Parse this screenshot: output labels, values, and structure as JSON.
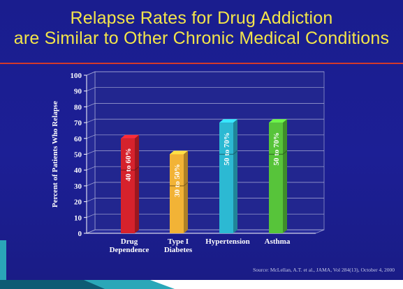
{
  "title": {
    "line1": "Relapse Rates for Drug Addiction",
    "line2": "are Similar to Other Chronic Medical Conditions"
  },
  "source": "Source: McLellan, A.T. et al., JAMA, Vol 284(13), October 4, 2000",
  "colors": {
    "title": "#f3e54a",
    "background": "#1c1f95",
    "rule": "#d43a2a"
  },
  "chart_data": {
    "type": "bar",
    "ylabel": "Percent of Patients Who Relapse",
    "ylim": [
      0,
      100
    ],
    "yticks": [
      0,
      10,
      20,
      30,
      40,
      50,
      60,
      70,
      80,
      90,
      100
    ],
    "grid": true,
    "categories": [
      {
        "lines": [
          "Drug",
          "Dependence"
        ]
      },
      {
        "lines": [
          "Type I",
          "Diabetes"
        ]
      },
      {
        "lines": [
          "Hypertension"
        ]
      },
      {
        "lines": [
          "Asthma"
        ]
      }
    ],
    "series": [
      {
        "low": 40,
        "high": 60,
        "label": "40 to 60%",
        "color": "#d6222c"
      },
      {
        "low": 30,
        "high": 50,
        "label": "30 to 50%",
        "color": "#f2b336"
      },
      {
        "low": 50,
        "high": 70,
        "label": "50 to 70%",
        "color": "#2cb9d3"
      },
      {
        "low": 50,
        "high": 70,
        "label": "50 to 70%",
        "color": "#57c43a"
      }
    ]
  }
}
